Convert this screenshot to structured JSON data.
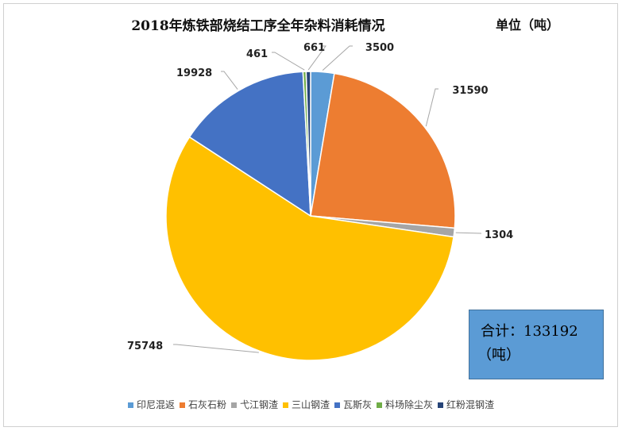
{
  "header": {
    "title": "2018年炼铁部烧结工序全年杂料消耗情况",
    "unit": "单位（吨）"
  },
  "total_box": {
    "line1": "合计：133192",
    "line2": "（吨）"
  },
  "chart_data": {
    "type": "pie",
    "title": "2018年炼铁部烧结工序全年杂料消耗情况",
    "unit": "吨",
    "total": 133192,
    "start_angle_deg": 0,
    "direction": "clockwise",
    "legend_position": "bottom",
    "slices": [
      {
        "label": "印尼混返",
        "value": 3500,
        "color": "#5b9bd5"
      },
      {
        "label": "石灰石粉",
        "value": 31590,
        "color": "#ed7d31"
      },
      {
        "label": "弋江钢渣",
        "value": 1304,
        "color": "#a5a5a5"
      },
      {
        "label": "三山钢渣",
        "value": 75748,
        "color": "#ffc000"
      },
      {
        "label": "瓦斯灰",
        "value": 19928,
        "color": "#4472c4"
      },
      {
        "label": "料场除尘灰",
        "value": 461,
        "color": "#70ad47"
      },
      {
        "label": "红粉混钢渣",
        "value": 661,
        "color": "#264478"
      }
    ]
  }
}
